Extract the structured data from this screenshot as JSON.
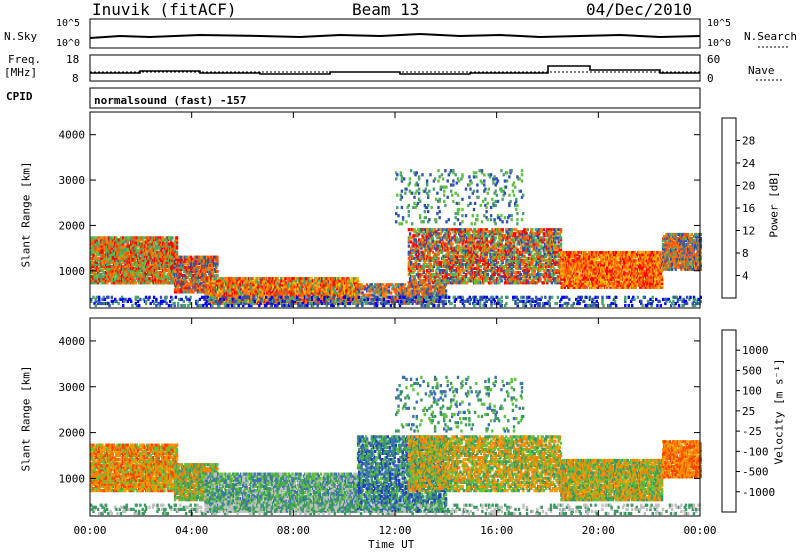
{
  "header": {
    "station": "Inuvik (fitACF)",
    "beam": "Beam 13",
    "date": "04/Dec/2010"
  },
  "top_panels": {
    "nsky_label": "N.Sky",
    "nsky_hi": "10^5",
    "nsky_lo": "10^0",
    "nsearch_label": "N.Search",
    "nsearch_hi": "10^5",
    "nsearch_lo": "10^0",
    "freq_label": "Freq.",
    "freq_unit": "[MHz]",
    "freq_ticks": [
      "18",
      "8"
    ],
    "nave_label": "Nave",
    "nave_ticks": [
      "60",
      "0"
    ],
    "cpid_label": "CPID",
    "cpid_text": "normalsound (fast) -157"
  },
  "chart_data": [
    {
      "type": "heatmap",
      "name": "power",
      "ylabel": "Slant Range [km]",
      "yticks": [
        "4000",
        "3000",
        "2000",
        "1000"
      ],
      "ylim": [
        180,
        4500
      ],
      "xlim": [
        0,
        24
      ],
      "colorbar_label": "Power [dB]",
      "colorbar_ticks": [
        "28",
        "24",
        "20",
        "16",
        "12",
        "8",
        "4"
      ],
      "colors": [
        "#0000ff",
        "#3050b0",
        "#4aa070",
        "#60c040",
        "#f0c000",
        "#ff8000",
        "#ff5000",
        "#ff0000"
      ]
    },
    {
      "type": "heatmap",
      "name": "velocity",
      "ylabel": "Slant Range [km]",
      "yticks": [
        "4000",
        "3000",
        "2000",
        "1000"
      ],
      "ylim": [
        180,
        4500
      ],
      "xlim": [
        0,
        24
      ],
      "xlabel": "Time UT",
      "xticks": [
        "00:00",
        "04:00",
        "08:00",
        "12:00",
        "16:00",
        "20:00",
        "00:00"
      ],
      "colorbar_label": "Velocity [m s⁻¹]",
      "colorbar_ticks": [
        "1000",
        "500",
        "100",
        "25",
        "-25",
        "-100",
        "-500",
        "-1000"
      ],
      "colors": [
        "#2040c0",
        "#3a70b0",
        "#3a9a60",
        "#60c040",
        "#c0c0c0",
        "#f0a000",
        "#ff8000",
        "#ff4000",
        "#ff0000"
      ]
    }
  ]
}
